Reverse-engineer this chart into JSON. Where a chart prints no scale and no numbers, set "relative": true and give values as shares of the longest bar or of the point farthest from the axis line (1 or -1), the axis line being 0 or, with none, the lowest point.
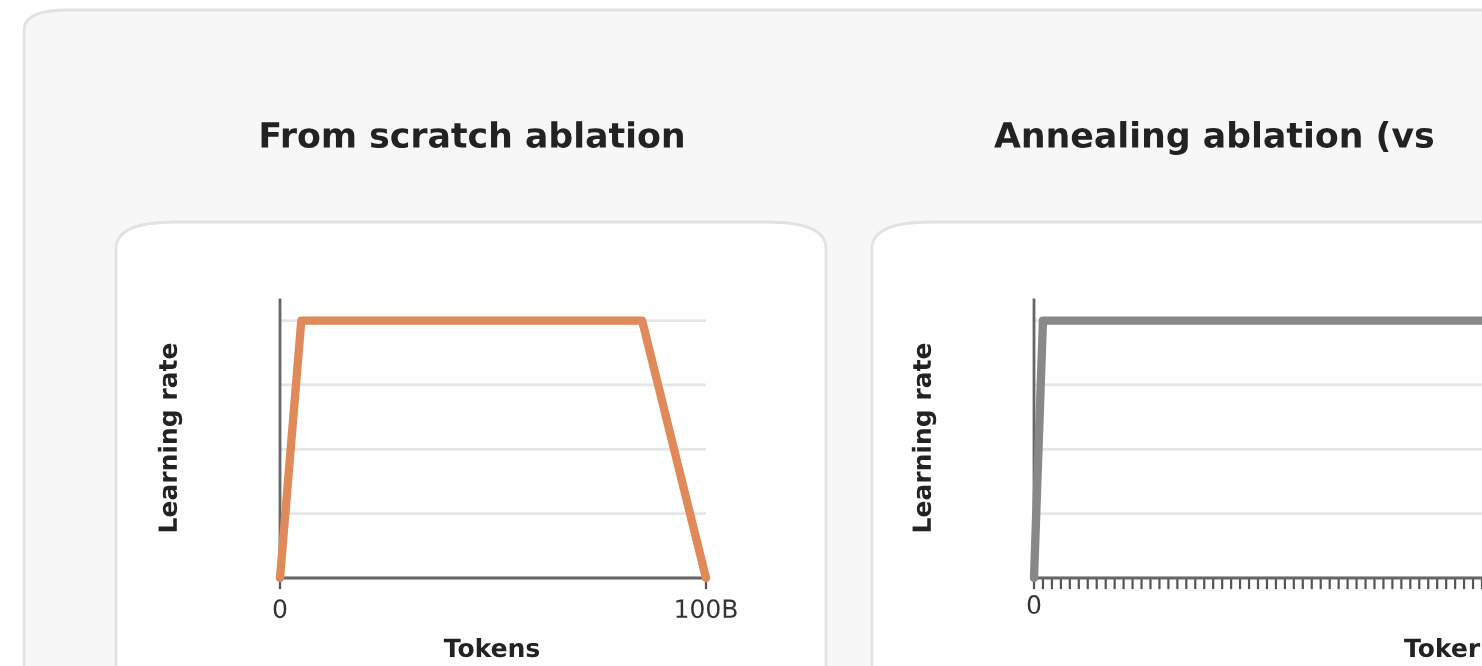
{
  "chart_data": [
    {
      "type": "line",
      "title": "From scratch ablation",
      "xlabel": "Tokens",
      "ylabel": "Learning rate",
      "x": [
        0,
        5,
        85,
        100
      ],
      "xlim": [
        0,
        100
      ],
      "xticks": [
        0,
        {
          "value": 100,
          "label": "100B"
        }
      ],
      "relative": true,
      "grid": "y",
      "series": [
        {
          "color": "#e08a5a",
          "values": [
            0,
            1,
            1,
            0
          ]
        }
      ]
    },
    {
      "type": "line",
      "title": "Annealing ablation (vs",
      "xlabel": "Toker",
      "ylabel": "Learning rate",
      "categories": [
        null,
        null,
        null,
        null,
        null,
        null,
        null,
        null,
        null,
        null,
        null,
        null,
        null,
        null,
        null,
        null,
        null,
        null,
        null,
        null,
        null,
        null,
        null,
        null,
        null,
        null,
        null,
        null,
        null,
        null,
        null,
        null,
        null,
        null,
        null,
        null,
        null,
        null,
        null,
        null,
        null,
        null,
        null,
        null,
        null,
        null,
        null,
        null,
        null,
        null,
        null
      ],
      "annotations": [
        "0"
      ],
      "relative": true,
      "grid": "y",
      "series": [
        {
          "color": "#888888",
          "values": [
            0,
            1,
            1,
            1,
            1,
            1,
            1,
            1,
            1,
            1,
            1,
            1,
            1,
            1,
            1,
            1,
            1,
            1,
            1,
            1,
            1,
            1,
            1,
            1,
            1,
            1,
            1,
            1,
            1,
            1,
            1,
            1,
            1,
            1,
            1,
            1,
            1,
            1,
            1,
            1,
            1,
            1,
            1,
            1,
            1,
            1,
            1,
            1,
            1,
            1,
            1
          ]
        }
      ]
    }
  ]
}
